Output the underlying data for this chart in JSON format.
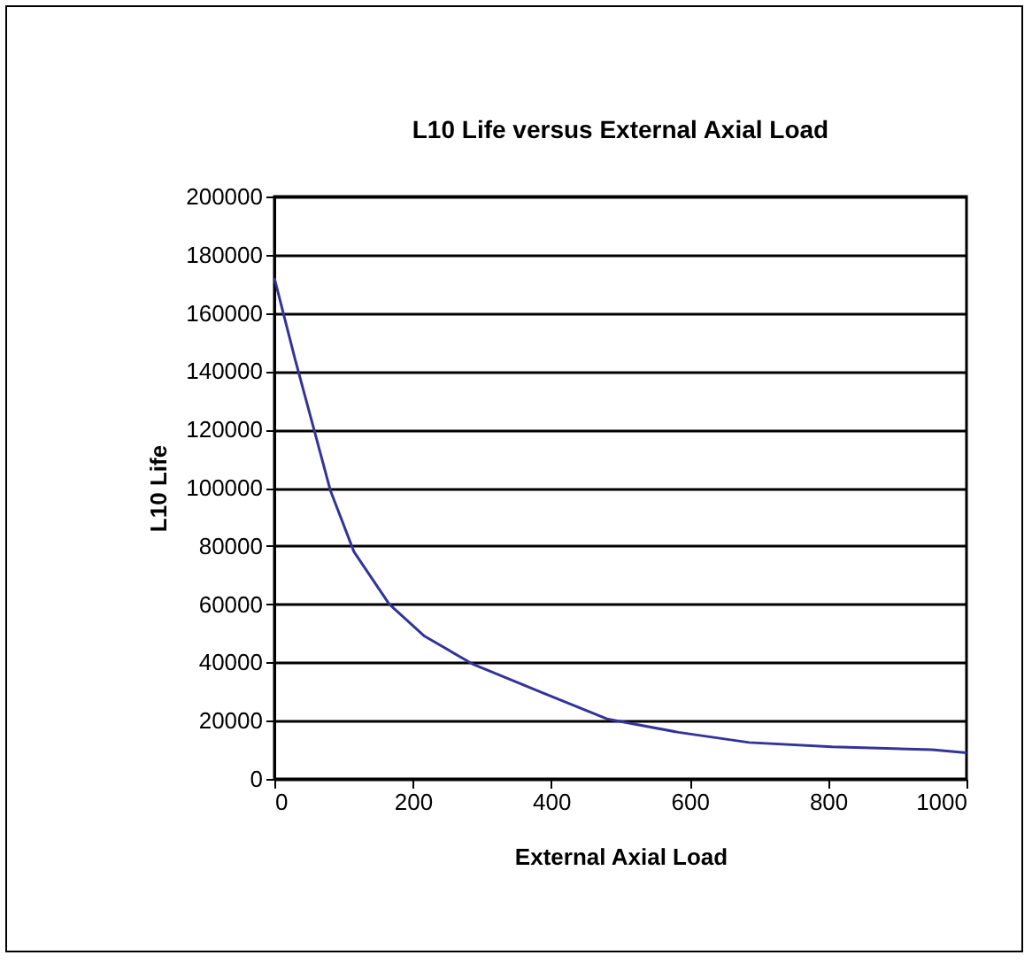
{
  "chart_data": {
    "type": "line",
    "title": "L10 Life versus External Axial Load",
    "xlabel": "External Axial Load",
    "ylabel": "L10 Life",
    "x": [
      0,
      30,
      55,
      81,
      115,
      166,
      217,
      286,
      388,
      482,
      584,
      686,
      806,
      950,
      1000
    ],
    "series": [
      {
        "color": "#333399",
        "values": [
          172000,
          144000,
          122000,
          99000,
          78000,
          60000,
          49000,
          39500,
          29500,
          20500,
          16000,
          12500,
          11000,
          10000,
          9000
        ]
      }
    ],
    "xlim": [
      0,
      1000
    ],
    "xticks": [
      0,
      200,
      400,
      600,
      800,
      1000
    ],
    "ylim": [
      0,
      200000
    ],
    "yticks": [
      0,
      20000,
      40000,
      60000,
      80000,
      100000,
      120000,
      140000,
      160000,
      180000,
      200000
    ],
    "grid": "y",
    "marker": "none",
    "line_style": "solid"
  }
}
